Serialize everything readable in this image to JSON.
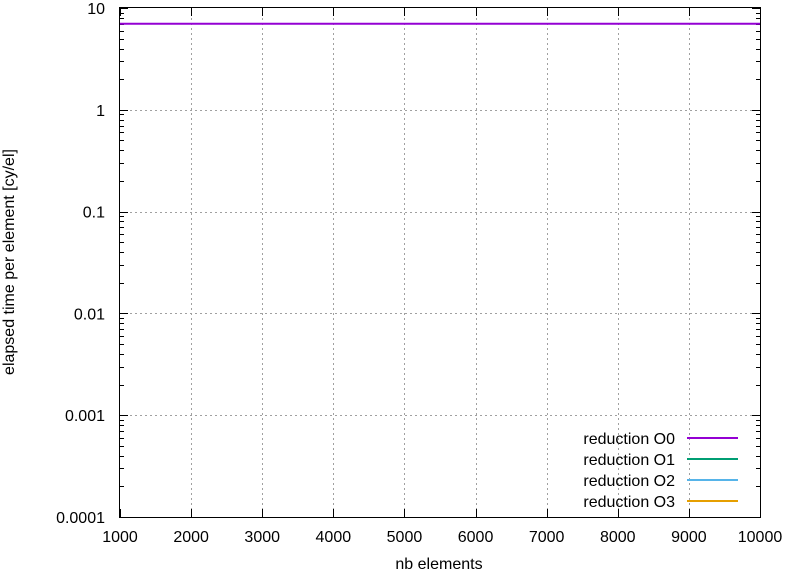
{
  "chart_data": {
    "type": "line",
    "title": "",
    "xlabel": "nb elements",
    "ylabel": "elapsed time per element [cy/el]",
    "xlim": [
      1000,
      10000
    ],
    "ylim": [
      0.0001,
      10
    ],
    "yscale": "log",
    "grid": true,
    "legend_position": "bottom-right",
    "x_ticks": [
      1000,
      2000,
      3000,
      4000,
      5000,
      6000,
      7000,
      8000,
      9000,
      10000
    ],
    "x_tick_labels": [
      "1000",
      "2000",
      "3000",
      "4000",
      "5000",
      "6000",
      "7000",
      "8000",
      "9000",
      "10000"
    ],
    "y_ticks": [
      0.0001,
      0.001,
      0.01,
      0.1,
      1,
      10
    ],
    "y_tick_labels": [
      "0.0001",
      "0.001",
      "0.01",
      "0.1",
      "1",
      "10"
    ],
    "series": [
      {
        "name": "reduction O0",
        "color": "#9400d3",
        "x": [
          1000,
          10000
        ],
        "y": [
          7,
          7
        ]
      },
      {
        "name": "reduction O1",
        "color": "#009e73",
        "x": [],
        "y": []
      },
      {
        "name": "reduction O2",
        "color": "#56b4e9",
        "x": [],
        "y": []
      },
      {
        "name": "reduction O3",
        "color": "#e69f00",
        "x": [],
        "y": []
      }
    ]
  }
}
